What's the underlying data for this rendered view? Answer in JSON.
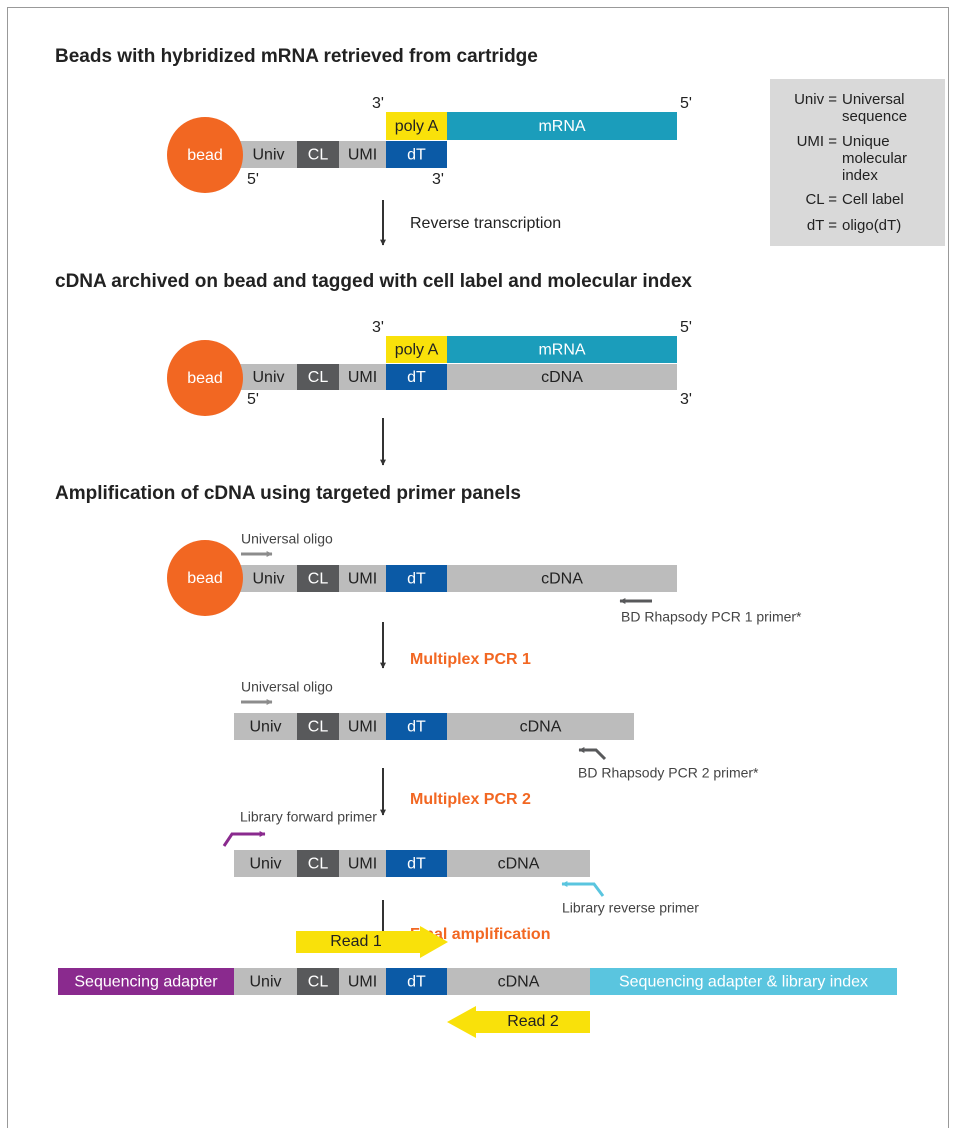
{
  "legend": [
    {
      "term": "Univ =",
      "definition": [
        "Universal",
        "sequence"
      ]
    },
    {
      "term": "UMI =",
      "definition": [
        "Unique",
        "molecular",
        "index"
      ]
    },
    {
      "term": "CL =",
      "definition": [
        "Cell label"
      ]
    },
    {
      "term": "dT =",
      "definition": [
        "oligo(dT)"
      ]
    }
  ],
  "step1": {
    "title": "Beads with hybridized mRNA retrieved from cartridge",
    "bead": "bead",
    "top_segments": [
      "poly A",
      "mRNA"
    ],
    "bottom_segments": [
      "Univ",
      "CL",
      "UMI",
      "dT"
    ],
    "end_labels": [
      "3'",
      "5'",
      "5'",
      "3'"
    ],
    "transition": "Reverse transcription"
  },
  "step2": {
    "title": "cDNA archived on bead and tagged with cell label and molecular index",
    "bead": "bead",
    "top_segments": [
      "poly A",
      "mRNA"
    ],
    "bottom_segments": [
      "Univ",
      "CL",
      "UMI",
      "dT",
      "cDNA"
    ],
    "end_labels": [
      "3'",
      "5'",
      "5'",
      "3'"
    ]
  },
  "step3": {
    "title": "Amplification of cDNA using targeted primer panels",
    "bead": "bead",
    "segments": [
      "Univ",
      "CL",
      "UMI",
      "dT",
      "cDNA"
    ],
    "forward_primer": "Universal oligo",
    "reverse_primer": "BD Rhapsody PCR 1 primer*",
    "transition": "Multiplex PCR 1"
  },
  "step4": {
    "segments": [
      "Univ",
      "CL",
      "UMI",
      "dT",
      "cDNA"
    ],
    "forward_primer": "Universal oligo",
    "reverse_primer": "BD Rhapsody PCR 2 primer*",
    "transition": "Multiplex PCR 2"
  },
  "step5": {
    "segments": [
      "Univ",
      "CL",
      "UMI",
      "dT",
      "cDNA"
    ],
    "forward_primer": "Library forward primer",
    "reverse_primer": "Library reverse primer",
    "transition": "Final amplification"
  },
  "final": {
    "segments": [
      "Sequencing adapter",
      "Univ",
      "CL",
      "UMI",
      "dT",
      "cDNA",
      "Sequencing adapter & library index"
    ],
    "read1": "Read 1",
    "read2": "Read 2"
  }
}
